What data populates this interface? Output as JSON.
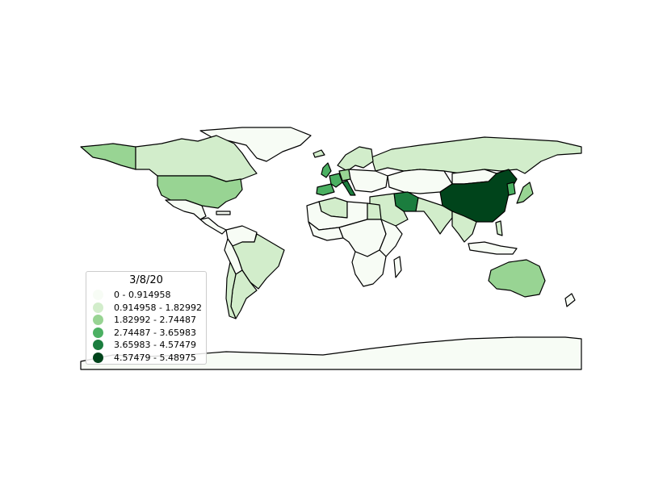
{
  "colors": {
    "class0": "#f7fcf5",
    "class1": "#d2edcb",
    "class2": "#98d493",
    "class3": "#4bb062",
    "class4": "#1b7d3e",
    "class5": "#00441b",
    "nodata": "#ffffff",
    "border": "#000000"
  },
  "legend": {
    "title": "3/8/20",
    "items": [
      {
        "label": "0 - 0.914958",
        "color": "#f7fcf5"
      },
      {
        "label": "0.914958 - 1.82992",
        "color": "#d2edcb"
      },
      {
        "label": "1.82992 - 2.74487",
        "color": "#98d493"
      },
      {
        "label": "2.74487 - 3.65983",
        "color": "#4bb062"
      },
      {
        "label": "3.65983 - 4.57479",
        "color": "#1b7d3e"
      },
      {
        "label": "4.57479 - 5.48975",
        "color": "#00441b"
      }
    ]
  },
  "regions": [
    {
      "name": "greenland",
      "class": 0
    },
    {
      "name": "alaska",
      "class": 2
    },
    {
      "name": "canada",
      "class": 1
    },
    {
      "name": "united-states",
      "class": 2
    },
    {
      "name": "mexico",
      "class": 0
    },
    {
      "name": "central-america",
      "class": 0
    },
    {
      "name": "colombia-venezuela",
      "class": 0
    },
    {
      "name": "peru",
      "class": 0
    },
    {
      "name": "brazil",
      "class": 1
    },
    {
      "name": "argentina",
      "class": 1
    },
    {
      "name": "chile",
      "class": 1
    },
    {
      "name": "russia",
      "class": 1
    },
    {
      "name": "scandinavia",
      "class": 1
    },
    {
      "name": "spain",
      "class": 3
    },
    {
      "name": "france",
      "class": 3
    },
    {
      "name": "germany",
      "class": 2
    },
    {
      "name": "italy",
      "class": 4
    },
    {
      "name": "eastern-europe",
      "class": 0
    },
    {
      "name": "kazakhstan",
      "class": 0
    },
    {
      "name": "iran",
      "class": 4
    },
    {
      "name": "middle-east",
      "class": 1
    },
    {
      "name": "algeria",
      "class": 1
    },
    {
      "name": "north-africa",
      "class": 0
    },
    {
      "name": "egypt",
      "class": 1
    },
    {
      "name": "west-africa",
      "class": 0
    },
    {
      "name": "central-africa",
      "class": 0
    },
    {
      "name": "east-africa",
      "class": 0
    },
    {
      "name": "southern-africa",
      "class": 0
    },
    {
      "name": "india",
      "class": 1
    },
    {
      "name": "china",
      "class": 5
    },
    {
      "name": "mongolia",
      "class": 0
    },
    {
      "name": "southeast-asia",
      "class": 1
    },
    {
      "name": "japan",
      "class": 2
    },
    {
      "name": "korea",
      "class": 3
    },
    {
      "name": "indonesia",
      "class": 0
    },
    {
      "name": "australia",
      "class": 2
    },
    {
      "name": "new-zealand",
      "class": 0
    },
    {
      "name": "antarctica",
      "class": 0
    },
    {
      "name": "uk",
      "class": 3
    }
  ]
}
